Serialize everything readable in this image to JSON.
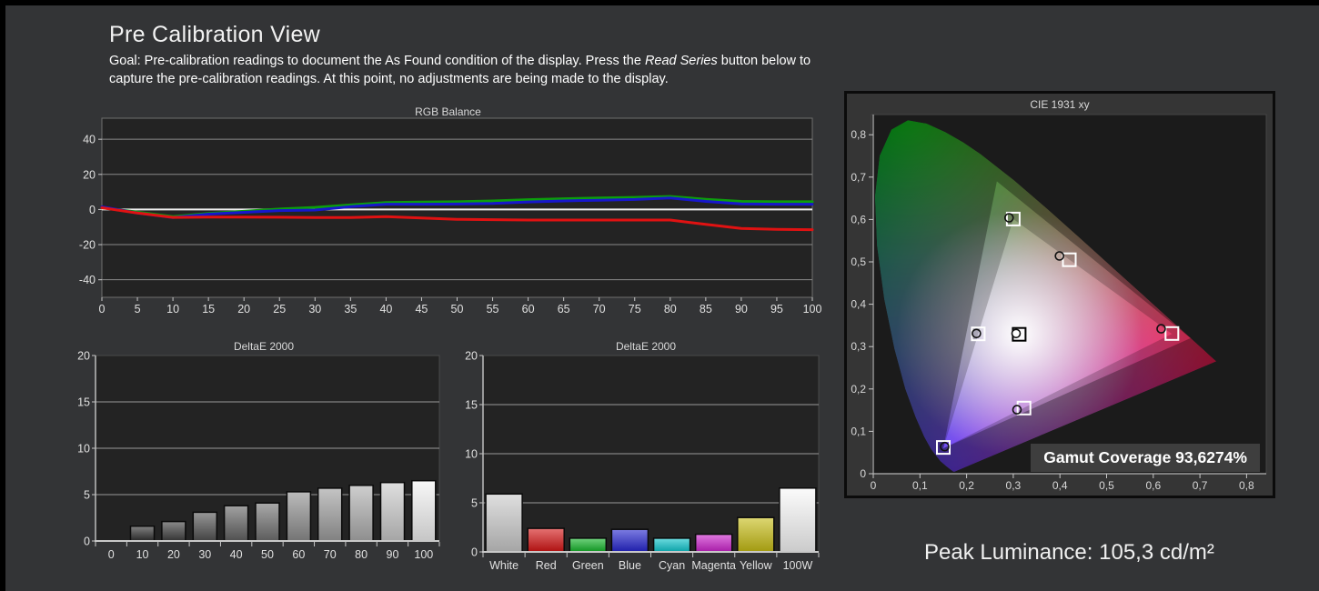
{
  "header": {
    "title": "Pre Calibration View",
    "goal_prefix": "Goal: Pre-calibration readings to document the As Found condition of the display. Press the ",
    "goal_read_series": "Read Series",
    "goal_suffix": " button below to",
    "goal_line2": "capture the pre-calibration readings. At this point, no adjustments are being made to the display."
  },
  "footer": {
    "peak_luminance": "Peak Luminance: 105,3 cd/m²"
  },
  "colors": {
    "page_background": "#333436",
    "plot_background": "#232323",
    "grid_line": "#8a8a8a",
    "zero_line": "#efefef",
    "axis_line": "#c8c8c8",
    "label_text": "#e0e0e0"
  },
  "chart_data": [
    {
      "id": "rgb_balance",
      "type": "line",
      "title": "RGB Balance",
      "x": [
        0,
        5,
        10,
        15,
        20,
        25,
        30,
        35,
        40,
        45,
        50,
        55,
        60,
        65,
        70,
        75,
        80,
        85,
        90,
        95,
        100
      ],
      "ylim": [
        -50,
        52
      ],
      "yticks": [
        40,
        20,
        0,
        -20,
        -40
      ],
      "grid": true,
      "series": [
        {
          "name": "Green",
          "color": "#0c9e0c",
          "values": [
            1,
            -1.5,
            -4,
            -2.2,
            -1,
            0.3,
            1.2,
            2.6,
            4,
            4.2,
            4.4,
            4.9,
            5.6,
            6.1,
            6.6,
            6.9,
            7.4,
            5.8,
            4.6,
            4.4,
            4.4
          ]
        },
        {
          "name": "Blue",
          "color": "#1717cc",
          "values": [
            1.5,
            -2,
            -4.6,
            -2.6,
            -1.6,
            -0.6,
            -0.3,
            1.6,
            3,
            3,
            3.1,
            3.5,
            4.3,
            4.9,
            5.3,
            5.7,
            6.6,
            4.6,
            3.2,
            3,
            3
          ]
        },
        {
          "name": "Red",
          "color": "#e01212",
          "values": [
            1,
            -2,
            -4.5,
            -4.3,
            -4.3,
            -4.4,
            -4.6,
            -4.6,
            -4,
            -4.8,
            -5.6,
            -5.8,
            -6,
            -6,
            -6,
            -6,
            -6,
            -8.5,
            -10.8,
            -11.3,
            -11.5
          ]
        }
      ]
    },
    {
      "id": "deltae_grayscale",
      "type": "bar",
      "title": "DeltaE 2000",
      "categories": [
        "0",
        "10",
        "20",
        "30",
        "40",
        "50",
        "60",
        "70",
        "80",
        "90",
        "100"
      ],
      "values": [
        0,
        1.6,
        2.1,
        3.1,
        3.8,
        4.1,
        5.3,
        5.7,
        6.0,
        6.3,
        6.5
      ],
      "bar_colors": [
        "#000000",
        "#303030",
        "#3e3e3e",
        "#525252",
        "#626262",
        "#707070",
        "#8e8e8e",
        "#9d9d9d",
        "#adadad",
        "#c9c9c9",
        "#f2f2f2"
      ],
      "ylim": [
        0,
        20
      ],
      "yticks": [
        0,
        5,
        10,
        15,
        20
      ],
      "xlabel": "",
      "ylabel": ""
    },
    {
      "id": "deltae_colors",
      "type": "bar",
      "title": "DeltaE 2000",
      "categories": [
        "White",
        "Red",
        "Green",
        "Blue",
        "Cyan",
        "Magenta",
        "Yellow",
        "100W"
      ],
      "values": [
        5.9,
        2.4,
        1.4,
        2.3,
        1.4,
        1.8,
        3.5,
        6.5
      ],
      "bar_colors": [
        "#c9c9c9",
        "#d41414",
        "#12b428",
        "#2424cf",
        "#0cc4cc",
        "#cc22cc",
        "#c6bc14",
        "#f8f8f8"
      ],
      "ylim": [
        0,
        20
      ],
      "yticks": [
        0,
        5,
        10,
        15,
        20
      ],
      "xlabel": "",
      "ylabel": ""
    },
    {
      "id": "cie_1931",
      "type": "scatter",
      "title": "CIE 1931 xy",
      "xlim": [
        0,
        0.846
      ],
      "ylim": [
        0,
        0.853
      ],
      "tick_step": 0.1,
      "xtick_labels": [
        "0",
        "0,1",
        "0,2",
        "0,3",
        "0,4",
        "0,5",
        "0,6",
        "0,7",
        "0,8"
      ],
      "ytick_labels": [
        "0",
        "0,1",
        "0,2",
        "0,3",
        "0,4",
        "0,5",
        "0,6",
        "0,7",
        "0,8"
      ],
      "gamut_label": "Gamut Coverage 93,6274%",
      "display_gamut_triangle": {
        "red": [
          0.64,
          0.33
        ],
        "green": [
          0.3,
          0.601
        ],
        "blue": [
          0.15,
          0.06
        ]
      },
      "reference_gamut_triangle": {
        "red": [
          0.68,
          0.32
        ],
        "green": [
          0.265,
          0.69
        ],
        "blue": [
          0.15,
          0.06
        ]
      },
      "points": [
        {
          "name": "White",
          "target": [
            0.3127,
            0.329
          ],
          "measured": [
            0.306,
            0.331
          ],
          "marker_color": "#000000"
        },
        {
          "name": "Red",
          "target": [
            0.64,
            0.331
          ],
          "measured": [
            0.617,
            0.342
          ],
          "marker_color": "#ffffff"
        },
        {
          "name": "Green",
          "target": [
            0.3,
            0.601
          ],
          "measured": [
            0.291,
            0.604
          ],
          "marker_color": "#ffffff"
        },
        {
          "name": "Blue",
          "target": [
            0.15,
            0.062
          ],
          "measured": [
            0.153,
            0.064
          ],
          "marker_color": "#ffffff"
        },
        {
          "name": "Cyan",
          "target": [
            0.225,
            0.33
          ],
          "measured": [
            0.221,
            0.331
          ],
          "marker_color": "#ffffff"
        },
        {
          "name": "Magenta",
          "target": [
            0.323,
            0.155
          ],
          "measured": [
            0.308,
            0.151
          ],
          "marker_color": "#ffffff"
        },
        {
          "name": "Yellow",
          "target": [
            0.42,
            0.505
          ],
          "measured": [
            0.399,
            0.514
          ],
          "marker_color": "#ffffff"
        }
      ]
    }
  ]
}
